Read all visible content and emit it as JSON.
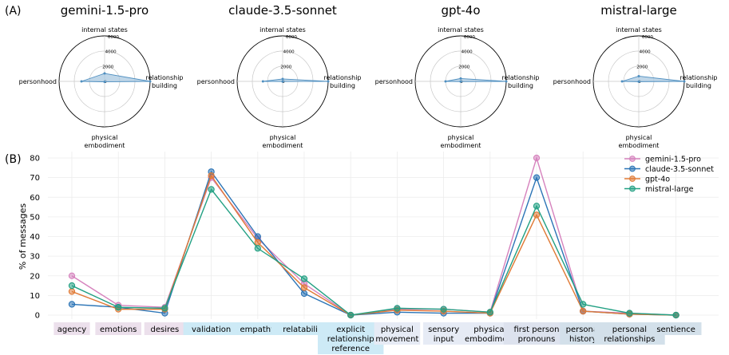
{
  "figure": {
    "panel_a": "(A)",
    "panel_b": "(B)"
  },
  "chart_data": [
    {
      "type": "radar",
      "panel": "(A)",
      "axes": [
        "internal states",
        "relationship building",
        "physical embodiment",
        "personhood"
      ],
      "radial_ticks": [
        "0",
        "2000",
        "4000",
        "6000"
      ],
      "rmax": 6000,
      "charts": [
        {
          "title": "gemini-1.5-pro",
          "values": [
            1050,
            6000,
            60,
            3050
          ]
        },
        {
          "title": "claude-3.5-sonnet",
          "values": [
            320,
            6000,
            20,
            2600
          ]
        },
        {
          "title": "gpt-4o",
          "values": [
            380,
            6000,
            30,
            2000
          ]
        },
        {
          "title": "mistral-large",
          "values": [
            690,
            6000,
            40,
            2200
          ]
        }
      ],
      "colors": {
        "fill": "#a9c8e0",
        "line": "#4f8fc0",
        "grid": "#c8c8c8"
      }
    },
    {
      "type": "line",
      "panel": "(B)",
      "ylabel": "% of messages",
      "ylim": [
        -2,
        84
      ],
      "yticks": [
        0,
        10,
        20,
        30,
        40,
        50,
        60,
        70,
        80
      ],
      "categories": [
        "agency",
        "emotions",
        "desires",
        "validation",
        "empathy",
        "relatability",
        "explicit relationship reference",
        "physical movement",
        "sensory input",
        "physical embodiment",
        "first person pronouns",
        "personal history",
        "personal relationships",
        "sentience"
      ],
      "category_lines": [
        [
          "agency"
        ],
        [
          "emotions"
        ],
        [
          "desires"
        ],
        [
          "validation"
        ],
        [
          "empathy"
        ],
        [
          "relatability"
        ],
        [
          "explicit",
          "relationship",
          "reference"
        ],
        [
          "physical",
          "movement"
        ],
        [
          "sensory",
          "input"
        ],
        [
          "physical",
          "embodiment"
        ],
        [
          "first person",
          "pronouns"
        ],
        [
          "personal",
          "history"
        ],
        [
          "personal",
          "relationships"
        ],
        [
          "sentience"
        ]
      ],
      "category_colors": [
        "#ece0ec",
        "#ece0ec",
        "#ece0ec",
        "#cdeaf6",
        "#cdeaf6",
        "#cdeaf6",
        "#cdeaf6",
        "#e6ebf5",
        "#e6ebf5",
        "#e6ebf5",
        "#dde2ee",
        "#d3e0ea",
        "#d3e0ea",
        "#d3e0ea"
      ],
      "series": [
        {
          "name": "gemini-1.5-pro",
          "color": "#d682bd",
          "values": [
            20,
            5,
            4,
            70,
            39,
            16,
            0,
            3,
            3,
            1.5,
            80,
            2,
            1,
            0
          ]
        },
        {
          "name": "claude-3.5-sonnet",
          "color": "#2b74b6",
          "values": [
            5.5,
            4,
            1,
            73,
            40,
            11,
            0,
            1.5,
            1,
            1,
            70,
            2,
            0.5,
            0
          ]
        },
        {
          "name": "gpt-4o",
          "color": "#e07a36",
          "values": [
            12,
            3,
            3,
            71,
            37,
            14,
            0,
            2.5,
            2,
            1,
            51,
            2,
            0.5,
            0
          ]
        },
        {
          "name": "mistral-large",
          "color": "#22a083",
          "values": [
            15,
            4,
            3.5,
            64,
            34,
            18.5,
            0,
            3.5,
            3,
            1.5,
            55.5,
            5.5,
            1,
            0
          ]
        }
      ],
      "legend": "top-right",
      "grid": true
    }
  ]
}
